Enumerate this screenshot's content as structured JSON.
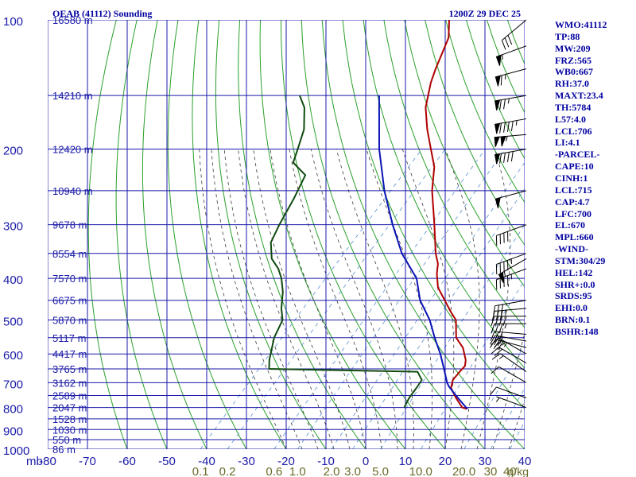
{
  "header": {
    "station_title": "OEAB (41112) Sounding",
    "valid_time": "1200Z 29 DEC 25"
  },
  "indices": [
    "WMO:41112",
    "TP:88",
    "MW:209",
    "FRZ:565",
    "WB0:667",
    "RH:37.0",
    "MAXT:23.4",
    "TH:5784",
    "L57:4.0",
    "LCL:706",
    "LI:4.1",
    "-PARCEL-",
    "CAPE:10",
    "CINH:1",
    "LCL:715",
    "CAP:4.7",
    "LFC:700",
    "EL:670",
    "MPL:660",
    "-WIND-",
    "STM:304/29",
    "HEL:142",
    "SHR+:0.0",
    "SRDS:95",
    "EHI:0.0",
    "BRN:0.1",
    "BSHR:148"
  ],
  "colors": {
    "temperature": "#b00000",
    "dewpoint": "#104a10",
    "parcel": "#0a14b4",
    "isobar": "#1a1aa8",
    "isotherm": "#1a1aa8",
    "dry_adiabat": "#2aa02a",
    "moist_adiabat": "#3a3a3a",
    "mixing_ratio": "#5a8fd0",
    "barb": "#000000"
  },
  "chart_data": {
    "type": "skew-t",
    "xlabel_unit": "mb",
    "ylim_mb": [
      100,
      1000
    ],
    "xlim_c": [
      -80,
      40
    ],
    "pressure_levels": [
      {
        "p": 100,
        "label": "100",
        "height": "16580 m"
      },
      {
        "p": 150,
        "label": "",
        "height": "14210 m"
      },
      {
        "p": 200,
        "label": "200",
        "height": "12420 m"
      },
      {
        "p": 250,
        "label": "",
        "height": "10940 m"
      },
      {
        "p": 300,
        "label": "300",
        "height": "9678 m"
      },
      {
        "p": 350,
        "label": "",
        "height": "8554 m"
      },
      {
        "p": 400,
        "label": "400",
        "height": "7570 m"
      },
      {
        "p": 450,
        "label": "",
        "height": "6675 m"
      },
      {
        "p": 500,
        "label": "500",
        "height": "5870 m"
      },
      {
        "p": 550,
        "label": "",
        "height": "5117 m"
      },
      {
        "p": 600,
        "label": "600",
        "height": "4417 m"
      },
      {
        "p": 650,
        "label": "",
        "height": "3765 m"
      },
      {
        "p": 700,
        "label": "700",
        "height": "3162 m"
      },
      {
        "p": 750,
        "label": "",
        "height": "2589 m"
      },
      {
        "p": 800,
        "label": "800",
        "height": "2047 m"
      },
      {
        "p": 850,
        "label": "",
        "height": "1528 m"
      },
      {
        "p": 900,
        "label": "900",
        "height": "1030 m"
      },
      {
        "p": 950,
        "label": "",
        "height": "550 m"
      },
      {
        "p": 1000,
        "label": "1000",
        "height": "86 m"
      }
    ],
    "temperature_ticks": [
      -80,
      -70,
      -60,
      -50,
      -40,
      -30,
      -20,
      -10,
      0,
      10,
      20,
      30,
      40
    ],
    "temperature_tick_labels": [
      "-80",
      "-70",
      "-60",
      "-50",
      "-40",
      "-30",
      "-20",
      "-10",
      "0",
      "10",
      "20",
      "30",
      "40"
    ],
    "mixing_ratio_labels": [
      {
        "w": 0.1,
        "label": "0.1"
      },
      {
        "w": 0.2,
        "label": "0.2"
      },
      {
        "w": 0.6,
        "label": "0.6"
      },
      {
        "w": 1.0,
        "label": "1.0"
      },
      {
        "w": 2.0,
        "label": "2.0"
      },
      {
        "w": 3.0,
        "label": "3.0"
      },
      {
        "w": 5.0,
        "label": "5.0"
      },
      {
        "w": 10.0,
        "label": "10.0"
      },
      {
        "w": 20.0,
        "label": "20.0"
      },
      {
        "w": 30.0,
        "label": "30"
      },
      {
        "w": 40.0,
        "label": "40"
      }
    ],
    "mixing_ratio_unit": "g/kg",
    "series": [
      {
        "name": "Temperature",
        "points": [
          {
            "p": 806,
            "t": 16.2
          },
          {
            "p": 800,
            "t": 14.6
          },
          {
            "p": 760,
            "t": 10.8
          },
          {
            "p": 720,
            "t": 7.2
          },
          {
            "p": 690,
            "t": 5.8
          },
          {
            "p": 660,
            "t": 5.6
          },
          {
            "p": 640,
            "t": 5.6
          },
          {
            "p": 620,
            "t": 4.4
          },
          {
            "p": 580,
            "t": 0.8
          },
          {
            "p": 550,
            "t": -3.2
          },
          {
            "p": 500,
            "t": -7.4
          },
          {
            "p": 480,
            "t": -10.4
          },
          {
            "p": 450,
            "t": -14.8
          },
          {
            "p": 420,
            "t": -19.5
          },
          {
            "p": 390,
            "t": -23.0
          },
          {
            "p": 370,
            "t": -25.0
          },
          {
            "p": 350,
            "t": -28.0
          },
          {
            "p": 300,
            "t": -35.0
          },
          {
            "p": 250,
            "t": -43.5
          },
          {
            "p": 220,
            "t": -48.5
          },
          {
            "p": 200,
            "t": -53.5
          },
          {
            "p": 180,
            "t": -59.0
          },
          {
            "p": 160,
            "t": -64.5
          },
          {
            "p": 140,
            "t": -69.0
          },
          {
            "p": 130,
            "t": -71.0
          },
          {
            "p": 110,
            "t": -75.0
          },
          {
            "p": 100,
            "t": -79.0
          }
        ]
      },
      {
        "name": "Dewpoint",
        "points": [
          {
            "p": 800,
            "t": 0.0
          },
          {
            "p": 760,
            "t": -1.0
          },
          {
            "p": 720,
            "t": -1.5
          },
          {
            "p": 690,
            "t": -2.0
          },
          {
            "p": 660,
            "t": -5.0
          },
          {
            "p": 650,
            "t": -43.0
          },
          {
            "p": 620,
            "t": -45.0
          },
          {
            "p": 550,
            "t": -49.0
          },
          {
            "p": 500,
            "t": -51.0
          },
          {
            "p": 470,
            "t": -54.0
          },
          {
            "p": 430,
            "t": -57.5
          },
          {
            "p": 400,
            "t": -61.0
          },
          {
            "p": 380,
            "t": -64.0
          },
          {
            "p": 360,
            "t": -68.0
          },
          {
            "p": 330,
            "t": -72.0
          },
          {
            "p": 300,
            "t": -74.0
          },
          {
            "p": 260,
            "t": -76.5
          },
          {
            "p": 230,
            "t": -79.0
          },
          {
            "p": 215,
            "t": -85.0
          },
          {
            "p": 200,
            "t": -87.0
          },
          {
            "p": 180,
            "t": -90.0
          },
          {
            "p": 160,
            "t": -95.0
          },
          {
            "p": 150,
            "t": -99.0
          }
        ]
      },
      {
        "name": "Parcel",
        "points": [
          {
            "p": 806,
            "t": 16.2
          },
          {
            "p": 750,
            "t": 10.2
          },
          {
            "p": 715,
            "t": 6.4
          },
          {
            "p": 700,
            "t": 5.0
          },
          {
            "p": 650,
            "t": 1.0
          },
          {
            "p": 600,
            "t": -3.4
          },
          {
            "p": 550,
            "t": -8.6
          },
          {
            "p": 500,
            "t": -14.0
          },
          {
            "p": 450,
            "t": -21.0
          },
          {
            "p": 400,
            "t": -27.0
          },
          {
            "p": 350,
            "t": -36.5
          },
          {
            "p": 300,
            "t": -45.5
          },
          {
            "p": 250,
            "t": -55.5
          },
          {
            "p": 200,
            "t": -66.5
          },
          {
            "p": 150,
            "t": -79.0
          }
        ]
      }
    ],
    "wind_barbs": [
      {
        "p": 100,
        "dir": 230,
        "spd": 30
      },
      {
        "p": 115,
        "dir": 250,
        "spd": 55
      },
      {
        "p": 130,
        "dir": 255,
        "spd": 65
      },
      {
        "p": 150,
        "dir": 260,
        "spd": 75
      },
      {
        "p": 170,
        "dir": 260,
        "spd": 95
      },
      {
        "p": 185,
        "dir": 265,
        "spd": 105
      },
      {
        "p": 200,
        "dir": 260,
        "spd": 90
      },
      {
        "p": 250,
        "dir": 255,
        "spd": 50
      },
      {
        "p": 300,
        "dir": 250,
        "spd": 40
      },
      {
        "p": 350,
        "dir": 250,
        "spd": 45
      },
      {
        "p": 360,
        "dir": 240,
        "spd": 55
      },
      {
        "p": 380,
        "dir": 250,
        "spd": 45
      },
      {
        "p": 450,
        "dir": 260,
        "spd": 30
      },
      {
        "p": 470,
        "dir": 265,
        "spd": 35
      },
      {
        "p": 490,
        "dir": 270,
        "spd": 40
      },
      {
        "p": 510,
        "dir": 270,
        "spd": 35
      },
      {
        "p": 540,
        "dir": 275,
        "spd": 30
      },
      {
        "p": 560,
        "dir": 280,
        "spd": 30
      },
      {
        "p": 580,
        "dir": 285,
        "spd": 35
      },
      {
        "p": 600,
        "dir": 300,
        "spd": 25
      },
      {
        "p": 630,
        "dir": 300,
        "spd": 20
      },
      {
        "p": 660,
        "dir": 305,
        "spd": 15
      },
      {
        "p": 700,
        "dir": 300,
        "spd": 10
      },
      {
        "p": 760,
        "dir": 290,
        "spd": 10
      },
      {
        "p": 800,
        "dir": 290,
        "spd": 5
      }
    ]
  }
}
